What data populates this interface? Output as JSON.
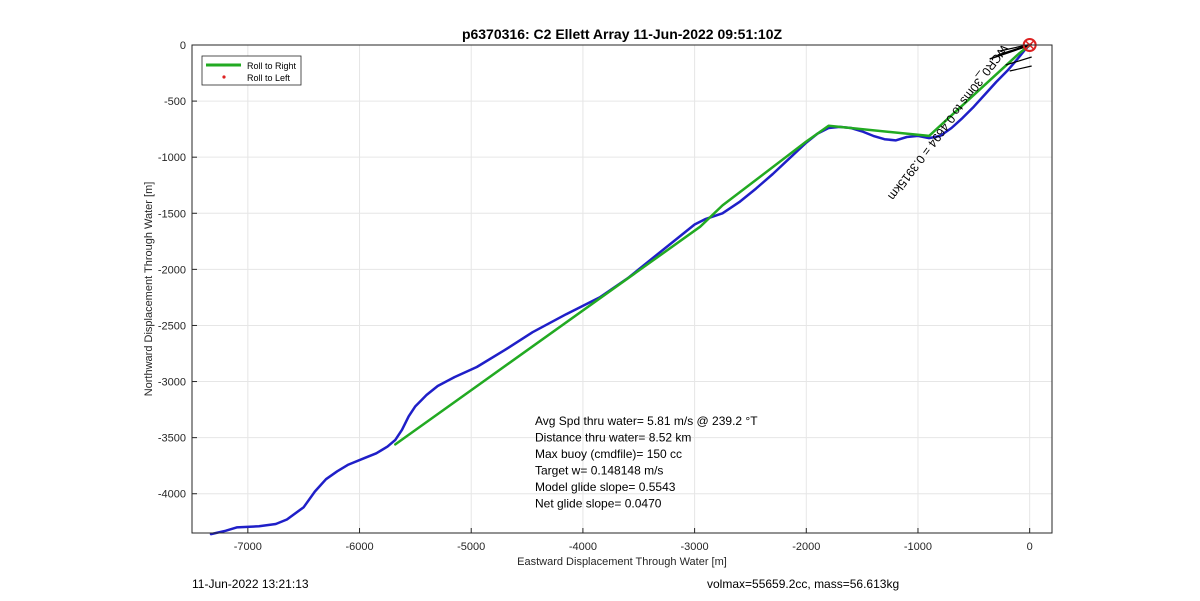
{
  "chart_data": {
    "type": "line",
    "title": "p6370316: C2 Ellett Array 11-Jun-2022 09:51:10Z",
    "xlabel": "Eastward Displacement Through Water [m]",
    "ylabel": "Northward Displacement Through Water [m]",
    "xlim": [
      -7500,
      200
    ],
    "ylim": [
      -4350,
      0
    ],
    "xticks": [
      -7000,
      -6000,
      -5000,
      -4000,
      -3000,
      -2000,
      -1000,
      0
    ],
    "yticks": [
      0,
      -500,
      -1000,
      -1500,
      -2000,
      -2500,
      -3000,
      -3500,
      -4000
    ],
    "grid": true,
    "legend_position": "top-left",
    "legend": [
      {
        "label": "Roll to Right",
        "color": "#22aa22",
        "marker": "line"
      },
      {
        "label": "Roll to Left",
        "color": "#dd2222",
        "marker": "dot"
      }
    ],
    "series": [
      {
        "color": "#1f1fc8",
        "x": [
          -7330,
          -7200,
          -7100,
          -6900,
          -6750,
          -6650,
          -6500,
          -6400,
          -6300,
          -6200,
          -6100,
          -5950,
          -5850,
          -5750,
          -5680,
          -5620,
          -5560,
          -5500,
          -5450,
          -5400,
          -5300,
          -5150,
          -4950,
          -4700,
          -4450,
          -4150,
          -3850,
          -3600,
          -3350,
          -3150,
          -3000,
          -2900,
          -2750,
          -2600,
          -2450,
          -2300,
          -2150,
          -2000,
          -1900,
          -1800,
          -1700,
          -1600,
          -1500,
          -1400,
          -1300,
          -1200,
          -1100,
          -1000,
          -900,
          -800,
          -700,
          -600,
          -500,
          -400,
          -300,
          -200,
          -130,
          -80,
          -40,
          0
        ],
        "y": [
          -4360,
          -4330,
          -4300,
          -4290,
          -4270,
          -4230,
          -4120,
          -3980,
          -3870,
          -3800,
          -3740,
          -3680,
          -3640,
          -3580,
          -3520,
          -3430,
          -3310,
          -3220,
          -3170,
          -3120,
          -3040,
          -2960,
          -2870,
          -2720,
          -2560,
          -2400,
          -2250,
          -2080,
          -1880,
          -1720,
          -1600,
          -1550,
          -1500,
          -1400,
          -1280,
          -1150,
          -1010,
          -870,
          -790,
          -740,
          -730,
          -740,
          -770,
          -810,
          -840,
          -850,
          -820,
          -810,
          -830,
          -810,
          -740,
          -650,
          -550,
          -440,
          -330,
          -230,
          -150,
          -90,
          -40,
          0
        ]
      },
      {
        "name": "Roll to Right",
        "color": "#22aa22",
        "x": [
          -5680,
          -2950,
          -2750,
          -2000,
          -1800,
          -900,
          -100,
          0
        ],
        "y": [
          -3560,
          -1620,
          -1430,
          -860,
          -720,
          -810,
          -80,
          0
        ]
      }
    ],
    "annotations": {
      "target_label": "WCR0_30ms to 0.4694 = 0.3915km",
      "target_circle": {
        "x": 0,
        "y": 0,
        "color": "#dd2222"
      },
      "stats": [
        "Avg Spd thru water=  5.81 m/s @ 239.2 °T",
        "Distance thru water=  8.52 km",
        "Max buoy (cmdfile)= 150 cc",
        "Target w= 0.148148 m/s",
        "Model glide slope= 0.5543",
        "Net glide slope= 0.0470"
      ]
    }
  },
  "footer": {
    "left": "11-Jun-2022 13:21:13",
    "right": "volmax=55659.2cc, mass=56.613kg"
  }
}
